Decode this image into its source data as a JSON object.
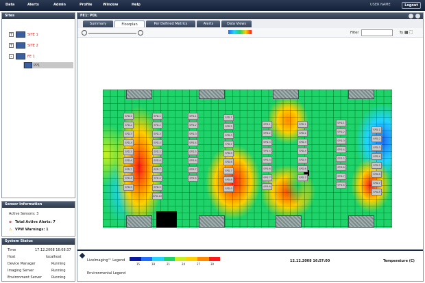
{
  "menu": [
    "Data",
    "Alerts",
    "Admin",
    "Profile",
    "Window",
    "Help"
  ],
  "user": "USER NAME",
  "logout": "Logout",
  "sites_panel": {
    "title": "Sites",
    "items": [
      "SITE 1",
      "SITE 2",
      "FE 1",
      "PP1"
    ]
  },
  "sensor_panel": {
    "title": "Sensor Information",
    "items": [
      "Active Sensors: 3",
      "Total Active Alerts: 7",
      "VPW Warnings: 1"
    ]
  },
  "status_panel": {
    "title": "System Status",
    "rows": [
      {
        "label": "Time",
        "value": "17.12.2008 16:08:37"
      },
      {
        "label": "Host",
        "value": "localhost"
      },
      {
        "label": "Device Manager",
        "value": "Running"
      },
      {
        "label": "Imaging Server",
        "value": "Running"
      },
      {
        "label": "Environment Server",
        "value": "Running"
      }
    ]
  },
  "main": {
    "title": "FE1: PDL",
    "tabs": [
      "Summary",
      "Floorplan",
      "Per Defined Metrics",
      "Alerts",
      "Data Views"
    ],
    "filter_label": "Filter",
    "legend_title": "LiveImaging™ Legend",
    "legend_ticks": [
      "15",
      "18",
      "21",
      "24",
      "27",
      "30"
    ],
    "legend_colors": [
      "#0a1aa0",
      "#1f6bff",
      "#22d3ff",
      "#1fd36a",
      "#c8f020",
      "#ffd000",
      "#ff8800",
      "#ff1a1a"
    ],
    "timestamp": "12.12.2008 16:57:00",
    "temp_label": "Temperature (C)",
    "thermal_legend": "Environmental Legend"
  },
  "racks_col1": [
    "SPD-1",
    "SPD-2",
    "SPD-3",
    "SPD-4",
    "SPD-5",
    "SPD-6",
    "SPD-7",
    "SPD-8",
    "SPD-9"
  ],
  "racks_col2": [
    "SPD-1",
    "SPD-2",
    "SPD-3",
    "SPD-4",
    "SPD-5",
    "SPD-6",
    "SPD-7",
    "SPD-8",
    "SPD-9",
    "SPD-10"
  ],
  "racks_col3": [
    "SPD-1",
    "SPD-2",
    "SPD-3",
    "SPD-4",
    "SPD-5",
    "SPD-6",
    "SPD-7",
    "SPD-8"
  ],
  "racks_col4": [
    "SPD-1",
    "SPD-2",
    "SPD-3",
    "SPD-4",
    "SPD-5",
    "SPD-6",
    "SPD-7",
    "SPD-8",
    "SPD-9"
  ],
  "racks_col5": [
    "SPD-1",
    "SPD-2",
    "SPD-3",
    "SPD-4",
    "SPD-5",
    "SPD-6",
    "SPD-7",
    "SPD-8"
  ],
  "racks_col6": [
    "SPD-1",
    "SPD-2",
    "SPD-3",
    "SPD-4",
    "SPD-5",
    "SPD-6",
    "SPD-7"
  ],
  "racks_col7": [
    "SPD-1",
    "SPD-2",
    "SPD-3",
    "SPD-4",
    "SPD-5",
    "SPD-6",
    "SPD-7",
    "SPD-8"
  ],
  "racks_col8": [
    "SPD-1",
    "SPD-2",
    "SPD-3",
    "SPD-4",
    "SPD-5",
    "SPD-6",
    "SPD-7",
    "SPD-8"
  ]
}
